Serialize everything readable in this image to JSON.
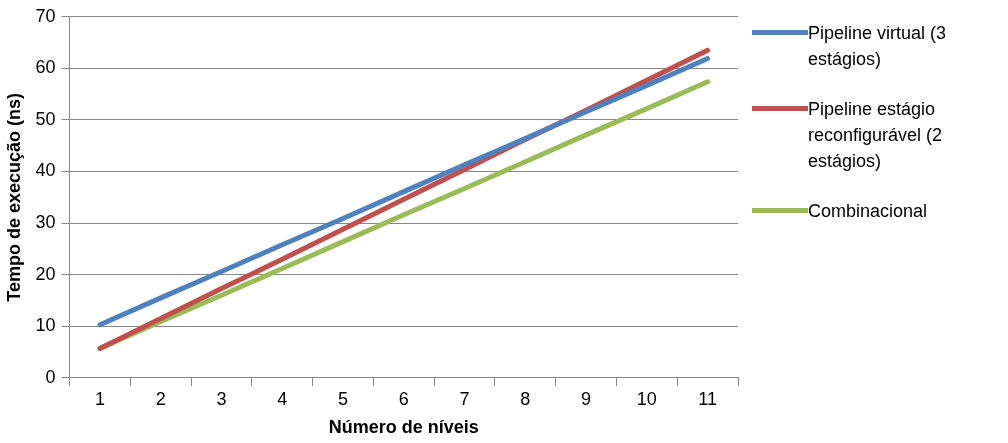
{
  "chart_data": {
    "type": "line",
    "xlabel": "Número de níveis",
    "ylabel": "Tempo de execução (ns)",
    "categories": [
      "1",
      "2",
      "3",
      "4",
      "5",
      "6",
      "7",
      "8",
      "9",
      "10",
      "11"
    ],
    "series": [
      {
        "name": "Pipeline virtual (3 estágios)",
        "color": "#4f81bd",
        "values": [
          10.3,
          15.5,
          20.6,
          25.8,
          30.9,
          36.1,
          41.3,
          46.4,
          51.6,
          56.7,
          61.9
        ]
      },
      {
        "name": "Pipeline estágio reconfigurável (2 estágios)",
        "color": "#c0504d",
        "values": [
          5.7,
          11.5,
          17.3,
          23.0,
          28.8,
          34.6,
          40.4,
          46.2,
          51.9,
          57.7,
          63.5
        ]
      },
      {
        "name": "Combinacional",
        "color": "#9bbb59",
        "values": [
          5.7,
          10.9,
          16.0,
          21.2,
          26.4,
          31.6,
          36.7,
          41.9,
          47.1,
          52.2,
          57.4
        ]
      }
    ],
    "ylim": [
      0,
      70
    ],
    "yticks": [
      0,
      10,
      20,
      30,
      40,
      50,
      60,
      70
    ],
    "grid": "y",
    "legend": "right",
    "marker": "none",
    "line_style": "solid"
  }
}
